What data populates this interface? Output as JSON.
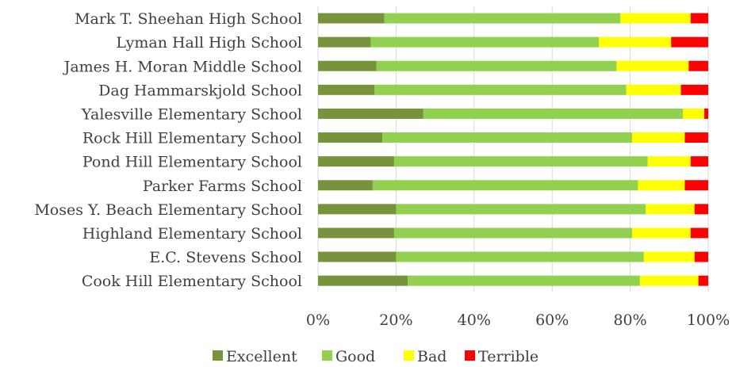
{
  "chart_data": {
    "type": "bar",
    "orientation": "horizontal",
    "stacked": "percent",
    "categories": [
      "Mark T. Sheehan High School",
      "Lyman Hall High School",
      "James H. Moran Middle School",
      "Dag Hammarskjold School",
      "Yalesville Elementary School",
      "Rock Hill Elementary School",
      "Pond Hill Elementary School",
      "Parker Farms School",
      "Moses Y. Beach Elementary School",
      "Highland Elementary School",
      "E.C. Stevens School",
      "Cook Hill Elementary School"
    ],
    "series": [
      {
        "name": "Excellent",
        "color": "#77933C",
        "values": [
          17,
          13.5,
          15,
          14.5,
          27,
          16.5,
          19.5,
          14,
          20,
          19.5,
          20,
          23
        ]
      },
      {
        "name": "Good",
        "color": "#92D050",
        "values": [
          60.5,
          58.5,
          61.5,
          64.5,
          66.5,
          64,
          65,
          68,
          64,
          61,
          63.5,
          59.5
        ]
      },
      {
        "name": "Bad",
        "color": "#FFFF00",
        "values": [
          18,
          18.5,
          18.5,
          14,
          5.5,
          13.5,
          11,
          12,
          12.5,
          15,
          13,
          15
        ]
      },
      {
        "name": "Terrible",
        "color": "#FF0000",
        "values": [
          4.5,
          9.5,
          5,
          7,
          1,
          6,
          4.5,
          6,
          3.5,
          4.5,
          3.5,
          2.5
        ]
      }
    ],
    "x_ticks": [
      "0%",
      "20%",
      "40%",
      "60%",
      "80%",
      "100%"
    ],
    "xlim": [
      0,
      100
    ],
    "grid": true,
    "legend_position": "bottom"
  }
}
